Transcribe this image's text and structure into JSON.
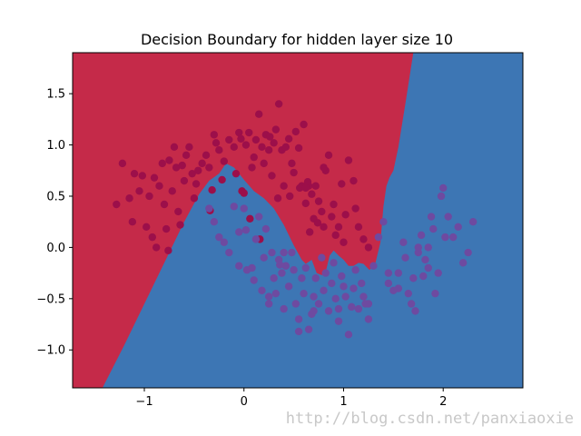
{
  "chart_data": {
    "type": "scatter",
    "title": "Decision Boundary for hidden layer size 10",
    "xlabel": "",
    "ylabel": "",
    "xlim": [
      -1.72,
      2.8
    ],
    "ylim": [
      -1.37,
      1.9
    ],
    "xticks": [
      -1,
      0,
      1,
      2
    ],
    "yticks": [
      -1.0,
      -0.5,
      0.0,
      0.5,
      1.0,
      1.5
    ],
    "xtick_labels": [
      "−1",
      "0",
      "1",
      "2"
    ],
    "ytick_labels": [
      "−1.0",
      "−0.5",
      "0.0",
      "0.5",
      "1.0",
      "1.5"
    ],
    "grid": false,
    "legend": null,
    "colors": {
      "region_class0": "#c52a49",
      "region_class1": "#3d76b4",
      "point_class0": "#9c0f4a",
      "point_class1": "#6e4aa0"
    },
    "decision_boundary": {
      "x": [
        -1.42,
        -1.2,
        -1.0,
        -0.8,
        -0.6,
        -0.45,
        -0.35,
        -0.25,
        -0.18,
        -0.1,
        0.0,
        0.1,
        0.2,
        0.3,
        0.4,
        0.5,
        0.58,
        0.62,
        0.68,
        0.73,
        0.78,
        0.82,
        0.86,
        0.9,
        0.95,
        1.0,
        1.05,
        1.1,
        1.15,
        1.2,
        1.26,
        1.32,
        1.37,
        1.4,
        1.43,
        1.46,
        1.5,
        1.55,
        1.62,
        1.7
      ],
      "y": [
        -1.37,
        -0.95,
        -0.55,
        -0.15,
        0.25,
        0.52,
        0.65,
        0.72,
        0.82,
        0.78,
        0.66,
        0.55,
        0.48,
        0.38,
        0.22,
        0.02,
        -0.12,
        -0.16,
        -0.12,
        -0.25,
        -0.27,
        -0.24,
        -0.08,
        -0.03,
        -0.08,
        -0.12,
        -0.18,
        -0.18,
        -0.15,
        -0.16,
        -0.22,
        -0.15,
        0.05,
        0.4,
        0.6,
        0.68,
        0.75,
        0.98,
        1.4,
        1.9
      ]
    },
    "series": [
      {
        "class": 0,
        "x": [
          -1.22,
          -1.15,
          -1.12,
          -1.05,
          -1.02,
          -0.98,
          -0.95,
          -0.9,
          -0.88,
          -0.85,
          -0.82,
          -0.8,
          -0.78,
          -0.75,
          -0.72,
          -0.7,
          -0.68,
          -0.66,
          -0.62,
          -0.6,
          -0.58,
          -0.55,
          -0.52,
          -0.5,
          -0.48,
          -0.42,
          -0.38,
          -0.35,
          -0.32,
          -0.3,
          -0.28,
          -0.25,
          -0.22,
          -0.2,
          -0.15,
          -0.1,
          -0.08,
          -0.05,
          -0.02,
          0.0,
          0.02,
          0.05,
          0.08,
          0.1,
          0.12,
          0.15,
          0.18,
          0.2,
          0.22,
          0.25,
          0.28,
          0.3,
          0.32,
          0.35,
          0.38,
          0.4,
          0.42,
          0.45,
          0.48,
          0.5,
          0.52,
          0.55,
          0.58,
          0.6,
          0.62,
          0.65,
          0.68,
          0.7,
          0.72,
          0.75,
          0.78,
          0.8,
          0.82,
          0.85,
          0.88,
          0.9,
          0.92,
          0.95,
          0.98,
          1.0,
          1.05,
          1.1,
          1.12,
          1.15,
          1.2,
          1.25,
          -1.28,
          -1.1,
          -0.92,
          -0.76,
          -0.64,
          -0.46,
          -0.34,
          0.06,
          0.16,
          0.34,
          0.56,
          0.64,
          0.8,
          1.02,
          0.74,
          0.66,
          0.46,
          0.26,
          -0.03,
          0.62
        ],
        "y": [
          0.82,
          0.48,
          0.25,
          0.55,
          0.7,
          0.2,
          0.5,
          0.68,
          0.0,
          0.6,
          0.82,
          0.42,
          0.18,
          0.85,
          0.55,
          0.98,
          0.78,
          0.35,
          0.8,
          0.65,
          0.9,
          0.98,
          0.72,
          0.48,
          0.62,
          0.82,
          0.9,
          0.78,
          0.56,
          1.1,
          1.02,
          0.95,
          0.66,
          0.84,
          1.05,
          0.98,
          0.72,
          1.12,
          0.55,
          0.53,
          1.0,
          1.12,
          0.78,
          0.88,
          1.05,
          1.3,
          0.98,
          0.82,
          1.1,
          0.95,
          0.7,
          1.02,
          1.15,
          1.4,
          0.95,
          0.6,
          0.98,
          1.06,
          0.82,
          0.73,
          1.13,
          0.97,
          0.6,
          1.2,
          0.43,
          0.6,
          0.52,
          0.28,
          0.6,
          0.45,
          0.35,
          0.2,
          0.75,
          0.9,
          0.3,
          0.42,
          0.12,
          0.2,
          0.62,
          0.05,
          0.85,
          0.65,
          0.38,
          0.2,
          0.08,
          0.0,
          0.42,
          0.72,
          0.1,
          -0.03,
          0.22,
          0.75,
          0.36,
          0.28,
          0.08,
          0.48,
          0.58,
          0.64,
          0.78,
          0.32,
          0.24,
          0.15,
          0.5,
          1.08,
          1.06,
          0.58
        ]
      },
      {
        "class": 1,
        "x": [
          -0.35,
          -0.3,
          -0.25,
          -0.2,
          -0.15,
          -0.1,
          -0.05,
          0.0,
          0.03,
          0.08,
          0.12,
          0.15,
          0.18,
          0.2,
          0.22,
          0.25,
          0.28,
          0.3,
          0.32,
          0.35,
          0.38,
          0.4,
          0.42,
          0.45,
          0.48,
          0.5,
          0.52,
          0.55,
          0.58,
          0.6,
          0.62,
          0.65,
          0.68,
          0.7,
          0.72,
          0.75,
          0.78,
          0.8,
          0.82,
          0.85,
          0.88,
          0.9,
          0.92,
          0.95,
          0.98,
          1.0,
          1.02,
          1.05,
          1.08,
          1.1,
          1.12,
          1.15,
          1.18,
          1.2,
          1.22,
          1.25,
          1.3,
          1.35,
          1.4,
          1.45,
          1.5,
          1.55,
          1.6,
          1.62,
          1.65,
          1.68,
          1.7,
          1.72,
          1.75,
          1.78,
          1.8,
          1.82,
          1.85,
          1.88,
          1.9,
          1.92,
          1.95,
          1.98,
          2.0,
          2.05,
          2.1,
          2.15,
          2.2,
          2.25,
          2.3,
          -0.05,
          0.1,
          0.25,
          0.4,
          0.55,
          0.7,
          0.95,
          1.25,
          1.45,
          1.55,
          1.75,
          1.85,
          2.02,
          0.02,
          0.36
        ],
        "y": [
          0.38,
          0.25,
          0.1,
          0.05,
          -0.05,
          0.4,
          0.15,
          0.38,
          -0.22,
          -0.2,
          0.08,
          0.3,
          -0.42,
          -0.1,
          0.18,
          -0.55,
          -0.05,
          -0.3,
          -0.45,
          -0.12,
          -0.25,
          -0.6,
          -0.18,
          -0.38,
          -0.05,
          -0.22,
          -0.55,
          -0.82,
          -0.3,
          -0.45,
          -0.2,
          -0.8,
          -0.65,
          -0.48,
          -0.3,
          -0.55,
          -0.1,
          -0.42,
          -0.25,
          -0.62,
          -0.35,
          -0.15,
          -0.5,
          -0.72,
          -0.28,
          -0.38,
          -0.48,
          -0.85,
          -0.58,
          -0.4,
          -0.22,
          -0.6,
          -0.35,
          -0.48,
          -0.55,
          -0.7,
          -0.18,
          0.1,
          0.25,
          -0.35,
          -0.42,
          -0.25,
          0.05,
          -0.1,
          -0.45,
          -0.55,
          -0.3,
          -0.62,
          -0.05,
          0.12,
          -0.28,
          -0.12,
          0.0,
          0.3,
          0.18,
          -0.45,
          -0.25,
          0.5,
          0.58,
          0.3,
          0.1,
          0.2,
          -0.15,
          -0.05,
          0.25,
          -0.18,
          -0.32,
          -0.48,
          -0.05,
          -0.7,
          -0.62,
          -0.6,
          -0.55,
          -0.25,
          -0.4,
          0.0,
          -0.2,
          0.1,
          0.17,
          -0.17
        ]
      }
    ]
  },
  "watermark": "http://blog.csdn.net/panxiaoxie"
}
